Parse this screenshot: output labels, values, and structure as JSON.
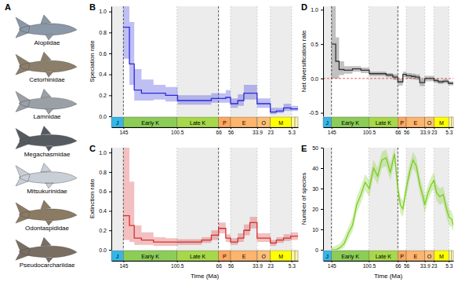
{
  "panel_a": {
    "label": "A",
    "families": [
      "Alopiidae",
      "Cetorhinidae",
      "Lamnidae",
      "Megachasmidae",
      "Mitsukurinidae",
      "Odontaspididae",
      "Pseudocarchariidae"
    ]
  },
  "time_scale": {
    "periods": [
      {
        "label": "J",
        "start": 155,
        "end": 145,
        "color": "#35b6e9"
      },
      {
        "label": "Early K",
        "start": 145,
        "end": 100.5,
        "color": "#8ccd57"
      },
      {
        "label": "Late K",
        "start": 100.5,
        "end": 66,
        "color": "#a6d84a"
      },
      {
        "label": "P",
        "start": 66,
        "end": 56,
        "color": "#fda75f"
      },
      {
        "label": "E",
        "start": 56,
        "end": 33.9,
        "color": "#fdb46c"
      },
      {
        "label": "O",
        "start": 33.9,
        "end": 23,
        "color": "#fdc07a"
      },
      {
        "label": "M",
        "start": 23,
        "end": 5.3,
        "color": "#ffff00"
      },
      {
        "label": null,
        "start": 5.3,
        "end": 2.58,
        "color": "#ffff99"
      },
      {
        "label": null,
        "start": 2.58,
        "end": 0,
        "color": "#fff2ae"
      }
    ],
    "shaded": [
      [
        155,
        145
      ],
      [
        100.5,
        66
      ],
      [
        56,
        33.9
      ],
      [
        23,
        5.3
      ]
    ],
    "events": [
      145,
      66
    ]
  },
  "chart_data": [
    {
      "type": "step",
      "title": "B",
      "ylabel": "Speciation rate",
      "color": "#2b2bd9",
      "grid": true,
      "xlim": [
        155,
        0
      ],
      "xticks": [
        145,
        100.5,
        66,
        56,
        33.9,
        23,
        5.3
      ],
      "ylim": [
        0,
        1.05
      ],
      "yticks": [
        {
          "value": 0,
          "label": "0.0"
        },
        0.2,
        0.4,
        0.6,
        0.8,
        {
          "value": 1,
          "label": "1.0"
        }
      ],
      "x": [
        145,
        140,
        136,
        130,
        120,
        110,
        100,
        90,
        80,
        72,
        66,
        60,
        56,
        50,
        45,
        40,
        34,
        28,
        23,
        18,
        12,
        6,
        3,
        0
      ],
      "values": [
        0.85,
        0.5,
        0.25,
        0.22,
        0.22,
        0.2,
        0.15,
        0.15,
        0.15,
        0.17,
        0.17,
        0.18,
        0.12,
        0.15,
        0.22,
        0.22,
        0.12,
        0.12,
        0.04,
        0.05,
        0.08,
        0.07,
        0.07,
        0.07
      ],
      "lower": [
        0.55,
        0.3,
        0.15,
        0.15,
        0.16,
        0.14,
        0.11,
        0.11,
        0.11,
        0.13,
        0.13,
        0.13,
        0.08,
        0.1,
        0.16,
        0.16,
        0.08,
        0.08,
        0.02,
        0.03,
        0.05,
        0.05,
        0.05,
        0.05
      ],
      "upper": [
        1.2,
        0.9,
        0.45,
        0.35,
        0.3,
        0.28,
        0.2,
        0.2,
        0.2,
        0.22,
        0.22,
        0.25,
        0.17,
        0.21,
        0.3,
        0.3,
        0.17,
        0.17,
        0.08,
        0.08,
        0.12,
        0.1,
        0.1,
        0.1
      ]
    },
    {
      "type": "step",
      "title": "C",
      "ylabel": "Extinction rate",
      "xlabel": "Time (Ma)",
      "color": "#d43030",
      "grid": true,
      "xlim": [
        155,
        0
      ],
      "xticks": [
        145,
        100.5,
        66,
        56,
        33.9,
        23,
        5.3
      ],
      "ylim": [
        0,
        1.05
      ],
      "yticks": [
        {
          "value": 0,
          "label": "0.0"
        },
        0.2,
        0.4,
        0.6,
        0.8,
        {
          "value": 1,
          "label": "1.0"
        }
      ],
      "x": [
        145,
        140,
        136,
        130,
        120,
        110,
        100,
        90,
        80,
        72,
        66,
        60,
        56,
        50,
        45,
        40,
        34,
        28,
        23,
        18,
        12,
        6,
        3,
        0
      ],
      "values": [
        0.35,
        0.25,
        0.12,
        0.1,
        0.08,
        0.08,
        0.08,
        0.08,
        0.1,
        0.15,
        0.22,
        0.12,
        0.08,
        0.12,
        0.2,
        0.28,
        0.12,
        0.12,
        0.07,
        0.1,
        0.12,
        0.14,
        0.14,
        0.14
      ],
      "lower": [
        0.1,
        0.08,
        0.05,
        0.05,
        0.04,
        0.04,
        0.05,
        0.05,
        0.07,
        0.1,
        0.17,
        0.08,
        0.05,
        0.08,
        0.15,
        0.22,
        0.08,
        0.08,
        0.04,
        0.07,
        0.09,
        0.1,
        0.1,
        0.1
      ],
      "upper": [
        1.2,
        0.7,
        0.25,
        0.18,
        0.13,
        0.12,
        0.11,
        0.11,
        0.13,
        0.2,
        0.28,
        0.16,
        0.12,
        0.17,
        0.26,
        0.34,
        0.17,
        0.17,
        0.1,
        0.13,
        0.16,
        0.18,
        0.18,
        0.18
      ]
    },
    {
      "type": "step",
      "title": "D",
      "ylabel": "Net diversification rate",
      "color": "#333333",
      "grid": true,
      "reference_line": 0,
      "xlim": [
        155,
        0
      ],
      "xticks": [
        145,
        100.5,
        66,
        56,
        33.9,
        23,
        5.3
      ],
      "ylim": [
        -0.55,
        1.05
      ],
      "yticks": [
        -0.5,
        {
          "value": 0,
          "label": "0.0"
        },
        0.5,
        {
          "value": 1,
          "label": "1.0"
        }
      ],
      "x": [
        145,
        140,
        136,
        130,
        120,
        110,
        100,
        90,
        80,
        72,
        66,
        60,
        56,
        50,
        45,
        40,
        34,
        28,
        23,
        18,
        12,
        6,
        3,
        0
      ],
      "values": [
        0.5,
        0.25,
        0.13,
        0.12,
        0.14,
        0.12,
        0.07,
        0.07,
        0.05,
        0.02,
        -0.05,
        0.06,
        0.04,
        0.03,
        0.02,
        -0.06,
        0.0,
        0.0,
        -0.03,
        -0.05,
        -0.04,
        -0.07,
        -0.07,
        -0.07
      ],
      "lower": [
        0.0,
        0.0,
        0.05,
        0.07,
        0.1,
        0.08,
        0.04,
        0.04,
        0.02,
        -0.02,
        -0.1,
        0.02,
        0.0,
        -0.01,
        -0.02,
        -0.11,
        -0.04,
        -0.04,
        -0.06,
        -0.08,
        -0.07,
        -0.1,
        -0.1,
        -0.1
      ],
      "upper": [
        1.1,
        0.6,
        0.25,
        0.18,
        0.18,
        0.16,
        0.1,
        0.1,
        0.08,
        0.06,
        0.0,
        0.1,
        0.08,
        0.07,
        0.06,
        -0.01,
        0.04,
        0.04,
        0.0,
        -0.02,
        -0.01,
        -0.04,
        -0.04,
        -0.04
      ]
    },
    {
      "type": "line",
      "title": "E",
      "ylabel": "Number of species",
      "xlabel": "Time (Ma)",
      "color": "#7ccc20",
      "grid": true,
      "xlim": [
        155,
        0
      ],
      "xticks": [
        145,
        100.5,
        66,
        56,
        33.9,
        23,
        5.3
      ],
      "ylim": [
        0,
        50
      ],
      "yticks": [
        0,
        10,
        20,
        30,
        40,
        50
      ],
      "x": [
        145,
        140,
        135,
        130,
        125,
        120,
        115,
        110,
        105,
        100,
        95,
        90,
        85,
        80,
        75,
        70,
        66,
        63,
        60,
        56,
        52,
        48,
        44,
        40,
        36,
        34,
        30,
        26,
        23,
        20,
        16,
        12,
        8,
        5,
        2,
        0
      ],
      "values": [
        0,
        0,
        1,
        3,
        8,
        12,
        22,
        27,
        33,
        30,
        40,
        36,
        44,
        45,
        38,
        47,
        30,
        22,
        20,
        30,
        38,
        44,
        41,
        32,
        26,
        22,
        28,
        32,
        34,
        28,
        26,
        27,
        20,
        16,
        15,
        12
      ],
      "lower": [
        0,
        0,
        0,
        1,
        5,
        9,
        18,
        23,
        29,
        26,
        36,
        32,
        40,
        41,
        34,
        43,
        26,
        18,
        16,
        26,
        34,
        40,
        37,
        28,
        22,
        18,
        24,
        28,
        30,
        24,
        22,
        23,
        16,
        12,
        11,
        9
      ],
      "upper": [
        1,
        2,
        3,
        6,
        11,
        16,
        26,
        31,
        37,
        34,
        44,
        40,
        48,
        49,
        42,
        50,
        34,
        26,
        24,
        34,
        42,
        48,
        45,
        36,
        30,
        26,
        32,
        36,
        38,
        32,
        30,
        31,
        24,
        20,
        19,
        16
      ]
    }
  ]
}
